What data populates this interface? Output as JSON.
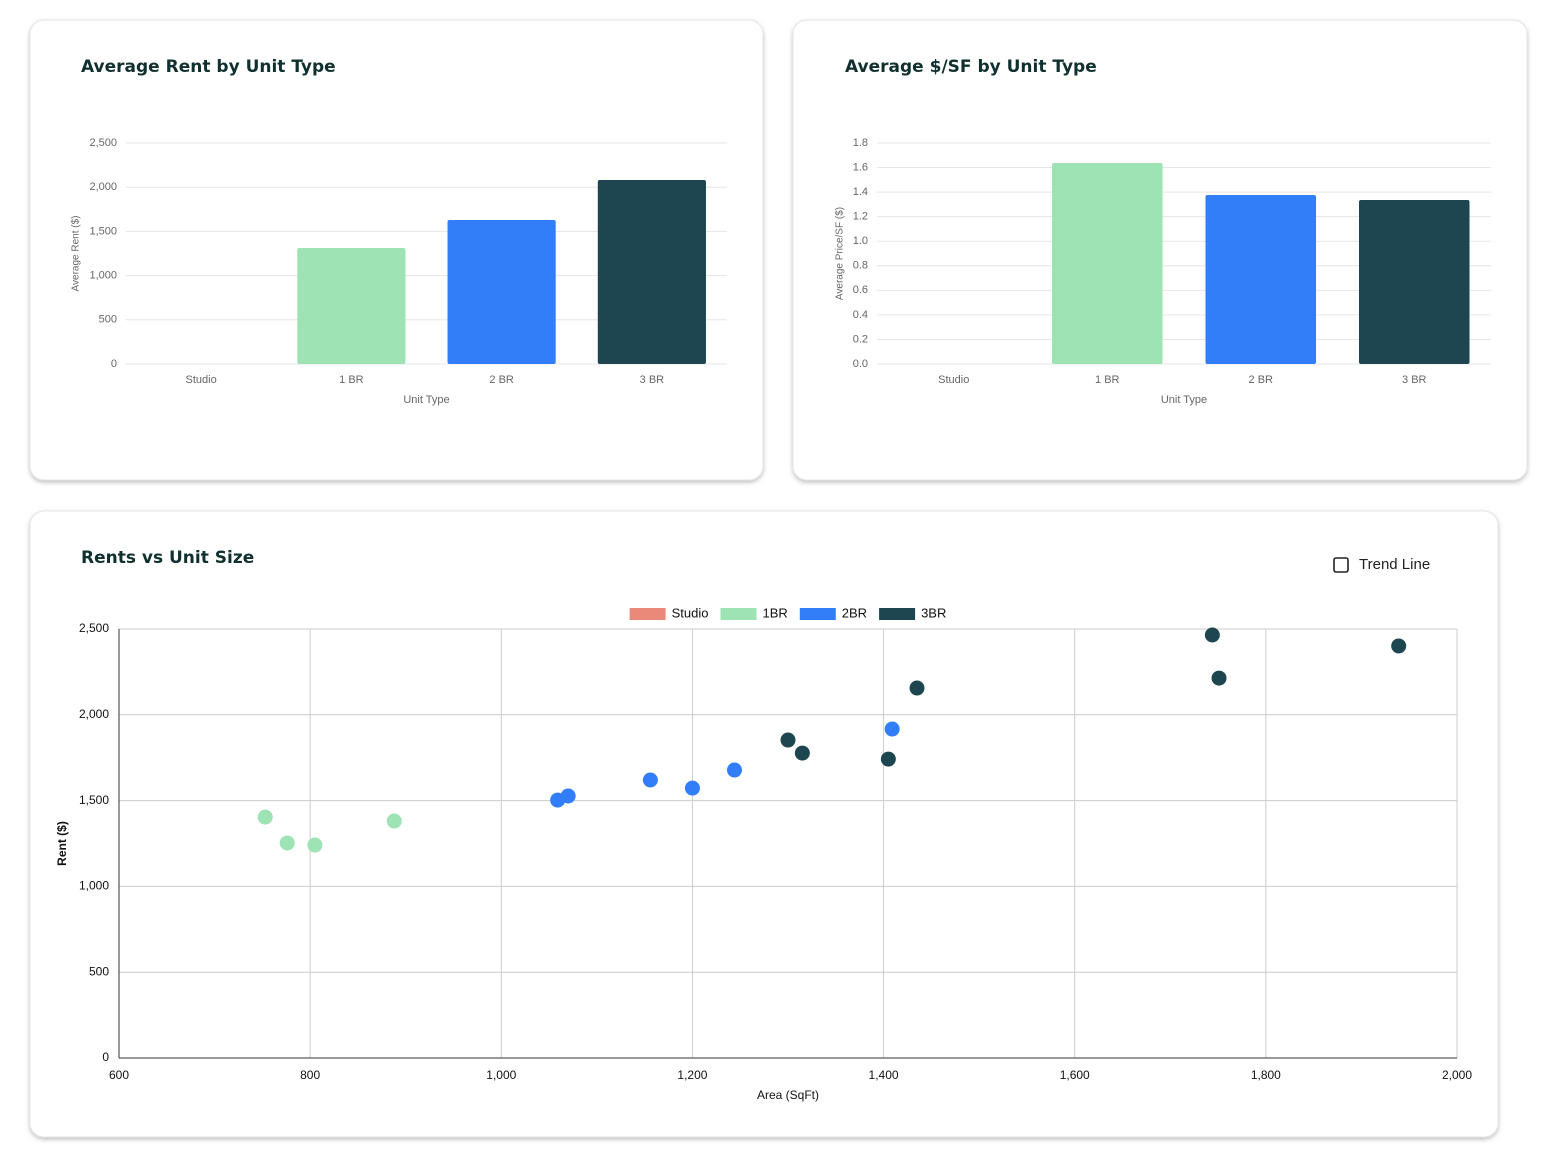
{
  "chart_data": [
    {
      "type": "bar",
      "title": "Average Rent by Unit Type",
      "x_label": "Unit Type",
      "y_label": "Average Rent ($)",
      "categories": [
        "Studio",
        "1 BR",
        "2 BR",
        "3 BR"
      ],
      "values": [
        0,
        1312,
        1629,
        2081
      ],
      "colors": [
        "#e8897a",
        "#9de3b4",
        "#317ef8",
        "#1d4650"
      ],
      "ylim": [
        0,
        2500
      ],
      "yticks": [
        0,
        500,
        {
          "value": 1000,
          "label": "1,000"
        },
        {
          "value": 1500,
          "label": "1,500"
        },
        {
          "value": 2000,
          "label": "2,000"
        },
        {
          "value": 2500,
          "label": "2,500"
        }
      ],
      "grid": true
    },
    {
      "type": "bar",
      "title": "Average $/SF by Unit Type",
      "x_label": "Unit Type",
      "y_label": "Average Price/SF ($)",
      "categories": [
        "Studio",
        "1 BR",
        "2 BR",
        "3 BR"
      ],
      "values": [
        0,
        1.637,
        1.376,
        1.336
      ],
      "colors": [
        "#e8897a",
        "#9de3b4",
        "#317ef8",
        "#1d4650"
      ],
      "ylim": [
        0,
        1.8
      ],
      "yticks": [
        {
          "value": 0,
          "label": "0.0"
        },
        0.2,
        0.4,
        0.6,
        0.8,
        {
          "value": 1,
          "label": "1.0"
        },
        1.2,
        1.4,
        1.6,
        1.8
      ],
      "grid": true
    },
    {
      "type": "scatter",
      "title": "Rents vs Unit Size",
      "x_label": "Area (SqFt)",
      "y_label": "Rent ($)",
      "checkbox_label": "Trend Line",
      "legend": "top",
      "series": [
        {
          "name": "Studio",
          "color": "#e8897a",
          "x": [],
          "values": []
        },
        {
          "name": "1BR",
          "color": "#9de3b4",
          "x": [
            753,
            776,
            805,
            888
          ],
          "values": [
            1404,
            1253,
            1241,
            1381
          ]
        },
        {
          "name": "2BR",
          "color": "#317ef8",
          "x": [
            1059,
            1070,
            1156,
            1200,
            1244,
            1409
          ],
          "values": [
            1503,
            1527,
            1620,
            1573,
            1678,
            1917
          ]
        },
        {
          "name": "3BR",
          "color": "#1d4650",
          "x": [
            1300,
            1315,
            1405,
            1435,
            1744,
            1751,
            1939
          ],
          "values": [
            1853,
            1777,
            1742,
            2156,
            2465,
            2214,
            2401
          ]
        }
      ],
      "xlim": [
        600,
        2000
      ],
      "xticks": [
        600,
        800,
        {
          "value": 1000,
          "label": "1,000"
        },
        {
          "value": 1200,
          "label": "1,200"
        },
        {
          "value": 1400,
          "label": "1,400"
        },
        {
          "value": 1600,
          "label": "1,600"
        },
        {
          "value": 1800,
          "label": "1,800"
        },
        {
          "value": 2000,
          "label": "2,000"
        }
      ],
      "ylim": [
        0,
        2500
      ],
      "yticks": [
        0,
        500,
        {
          "value": 1000,
          "label": "1,000"
        },
        {
          "value": 1500,
          "label": "1,500"
        },
        {
          "value": 2000,
          "label": "2,000"
        },
        {
          "value": 2500,
          "label": "2,500"
        }
      ],
      "grid": true
    }
  ]
}
